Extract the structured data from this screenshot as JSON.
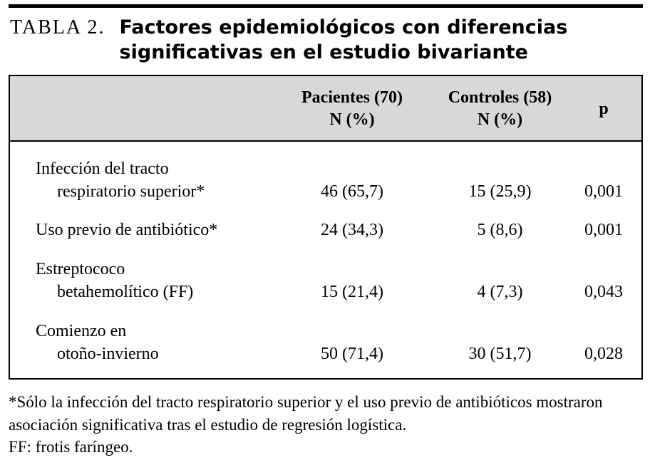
{
  "title": {
    "label": "TABLA 2.",
    "line1": "Factores epidemiológicos con diferencias",
    "line2": "significativas en el estudio bivariante"
  },
  "table": {
    "header": {
      "pacientes": "Pacientes (70)",
      "pacientes_sub": "N (%)",
      "controles": "Controles (58)",
      "controles_sub": "N (%)",
      "p": "p"
    },
    "rows": [
      {
        "label1": "Infección del tracto",
        "label2": "respiratorio superior*",
        "pacientes": "46 (65,7)",
        "controles": "15 (25,9)",
        "p": "0,001"
      },
      {
        "label1": "Uso previo de antibiótico*",
        "label2": "",
        "pacientes": "24 (34,3)",
        "controles": "5 (8,6)",
        "p": "0,001"
      },
      {
        "label1": "Estreptococo",
        "label2": "betahemolítico (FF)",
        "pacientes": "15 (21,4)",
        "controles": "4 (7,3)",
        "p": "0,043"
      },
      {
        "label1": "Comienzo en",
        "label2": "otoño-invierno",
        "pacientes": "50 (71,4)",
        "controles": "30 (51,7)",
        "p": "0,028"
      }
    ]
  },
  "footnotes": {
    "note1": "*Sólo la infección del tracto respiratorio superior y el uso previo de antibióticos mostraron asociación significativa tras el estudio de regresión logística.",
    "note2": "FF: frotis faríngeo."
  },
  "colors": {
    "header_bg": "#d8d8d8",
    "rule": "#000000"
  }
}
